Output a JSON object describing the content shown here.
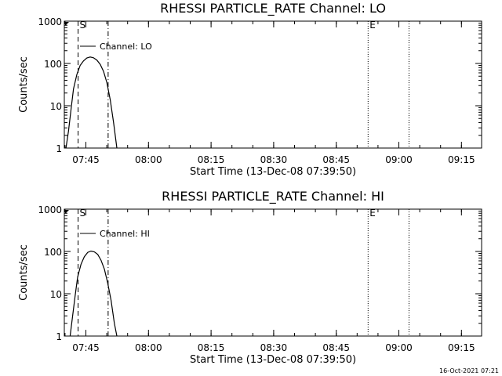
{
  "chart_data": [
    {
      "type": "line",
      "title": "RHESSI PARTICLE_RATE Channel: LO",
      "xlabel": "Start Time (13-Dec-08 07:39:50)",
      "ylabel": "Counts/sec",
      "yscale": "log",
      "ylim": [
        1,
        1000
      ],
      "xlim_minutes": [
        0,
        100
      ],
      "x_ticks": [
        {
          "label": "07:45",
          "value": 5.17
        },
        {
          "label": "08:00",
          "value": 20.17
        },
        {
          "label": "08:15",
          "value": 35.17
        },
        {
          "label": "08:30",
          "value": 50.17
        },
        {
          "label": "08:45",
          "value": 65.17
        },
        {
          "label": "09:00",
          "value": 80.17
        },
        {
          "label": "09:15",
          "value": 95.17
        }
      ],
      "y_ticks": [
        {
          "label": "1",
          "value": 1
        },
        {
          "label": "10",
          "value": 10
        },
        {
          "label": "100",
          "value": 100
        },
        {
          "label": "1000",
          "value": 1000
        }
      ],
      "legend": "Channel: LO",
      "markers": [
        {
          "label": "S",
          "x": 3.3,
          "style": "dashed"
        },
        {
          "label": "",
          "x": 10.5,
          "style": "dashdot"
        },
        {
          "label": "E",
          "x": 72.8,
          "style": "dotted"
        },
        {
          "label": "",
          "x": 82.6,
          "style": "dotted"
        }
      ],
      "series": [
        {
          "name": "Channel: LO",
          "x": [
            0.4,
            1.0,
            1.6,
            2.2,
            3.0,
            3.8,
            4.6,
            5.4,
            6.2,
            7.0,
            7.8,
            8.6,
            9.4,
            10.2,
            11.0,
            11.8,
            12.6
          ],
          "y": [
            1,
            2.5,
            8,
            25,
            55,
            90,
            115,
            135,
            142,
            136,
            120,
            95,
            65,
            35,
            14,
            4,
            1
          ]
        }
      ]
    },
    {
      "type": "line",
      "title": "RHESSI PARTICLE_RATE Channel: HI",
      "xlabel": "Start Time (13-Dec-08 07:39:50)",
      "ylabel": "Counts/sec",
      "yscale": "log",
      "ylim": [
        1,
        1000
      ],
      "xlim_minutes": [
        0,
        100
      ],
      "x_ticks": [
        {
          "label": "07:45",
          "value": 5.17
        },
        {
          "label": "08:00",
          "value": 20.17
        },
        {
          "label": "08:15",
          "value": 35.17
        },
        {
          "label": "08:30",
          "value": 50.17
        },
        {
          "label": "08:45",
          "value": 65.17
        },
        {
          "label": "09:00",
          "value": 80.17
        },
        {
          "label": "09:15",
          "value": 95.17
        }
      ],
      "y_ticks": [
        {
          "label": "1",
          "value": 1
        },
        {
          "label": "10",
          "value": 10
        },
        {
          "label": "100",
          "value": 100
        },
        {
          "label": "1000",
          "value": 1000
        }
      ],
      "legend": "Channel: HI",
      "markers": [
        {
          "label": "S",
          "x": 3.3,
          "style": "dashed"
        },
        {
          "label": "",
          "x": 10.5,
          "style": "dashdot"
        },
        {
          "label": "E",
          "x": 72.8,
          "style": "dotted"
        },
        {
          "label": "",
          "x": 82.6,
          "style": "dotted"
        }
      ],
      "series": [
        {
          "name": "Channel: HI",
          "x": [
            1.4,
            2.0,
            2.6,
            3.2,
            4.0,
            4.8,
            5.6,
            6.4,
            7.2,
            8.0,
            8.8,
            9.6,
            10.4,
            11.2,
            12.0,
            12.6
          ],
          "y": [
            1,
            3,
            9,
            25,
            50,
            75,
            95,
            102,
            98,
            85,
            62,
            38,
            18,
            7,
            2,
            1
          ]
        }
      ]
    }
  ],
  "footer": {
    "timestamp": "16-Oct-2021 07:21"
  }
}
